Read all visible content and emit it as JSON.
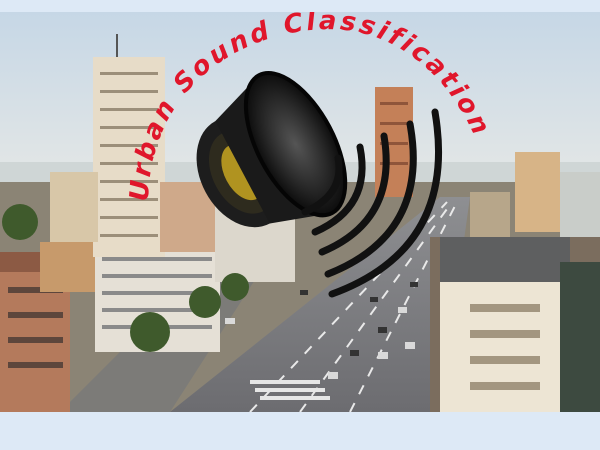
{
  "title": "Urban Sound Classification",
  "title_color": "#e0162b",
  "background_color": "#dde9f6",
  "icon": "speaker-icon",
  "sound_wave_color": "#111111"
}
